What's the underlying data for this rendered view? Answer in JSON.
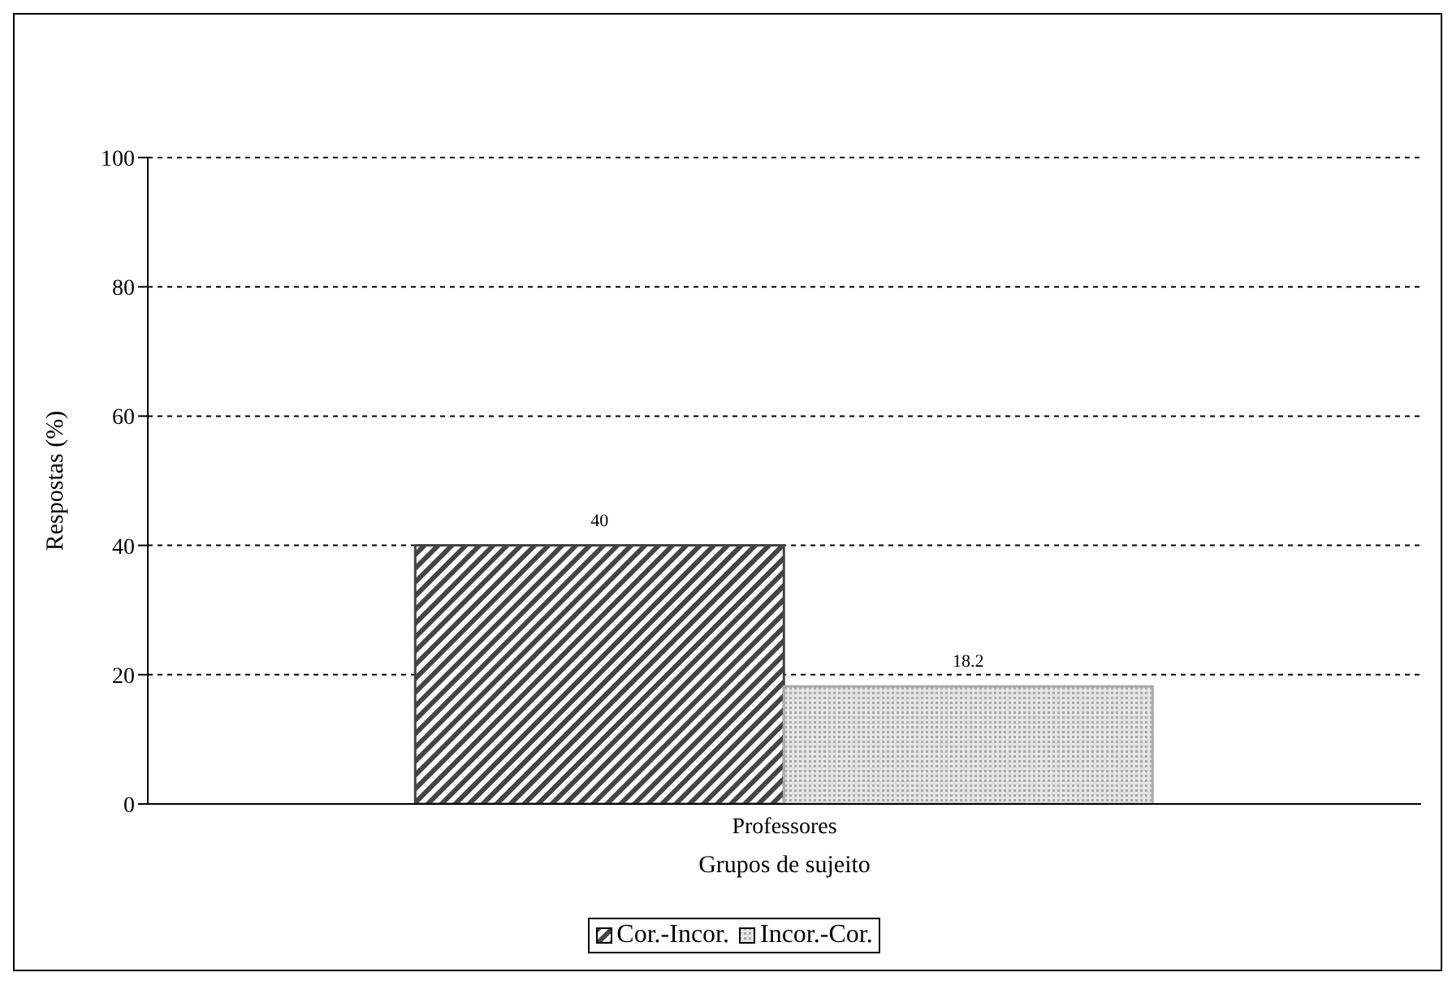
{
  "chart_data": {
    "type": "bar",
    "xlabel": "Grupos de sujeito",
    "ylabel": "Respostas (%)",
    "categories": [
      "Professores"
    ],
    "series": [
      {
        "name": "Cor.-Incor.",
        "color": "#444444",
        "values": [
          40
        ]
      },
      {
        "name": "Incor.-Cor.",
        "color": "#aaaaaa",
        "values": [
          18.2
        ]
      }
    ],
    "ylim": [
      0,
      100
    ],
    "yticks": [
      0,
      20,
      40,
      60,
      80,
      100
    ],
    "grid": "y",
    "legend": "bottom",
    "data_labels": true
  }
}
